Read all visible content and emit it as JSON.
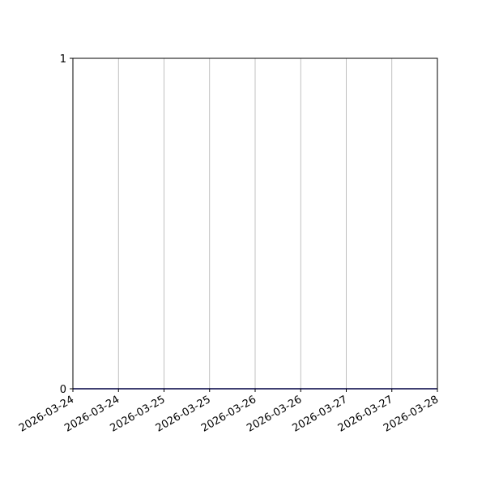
{
  "chart_data": {
    "type": "line",
    "title": "",
    "xlabel": "",
    "ylabel": "",
    "x_tick_labels": [
      "2026-03-24",
      "2026-03-24",
      "2026-03-25",
      "2026-03-25",
      "2026-03-26",
      "2026-03-26",
      "2026-03-27",
      "2026-03-27",
      "2026-03-28"
    ],
    "x_ticks": [
      "2026-03-24T00:00",
      "2026-03-24T12:00",
      "2026-03-25T00:00",
      "2026-03-25T12:00",
      "2026-03-26T00:00",
      "2026-03-26T12:00",
      "2026-03-27T00:00",
      "2026-03-27T12:00",
      "2026-03-28T00:00"
    ],
    "xlim": [
      "2026-03-24T00:00",
      "2026-03-28T00:00"
    ],
    "y_tick_labels": [
      "0",
      "1"
    ],
    "y_ticks": [
      0,
      1
    ],
    "ylim": [
      0,
      1
    ],
    "grid": "x-axis vertical lines",
    "series": [
      {
        "x": [
          "2026-03-24T00:00",
          "2026-03-28T00:00"
        ],
        "y": [
          0,
          0
        ],
        "color": "#0000cc"
      }
    ],
    "colors": {
      "grid": "#b0b0b0",
      "axes": "#000000"
    }
  }
}
